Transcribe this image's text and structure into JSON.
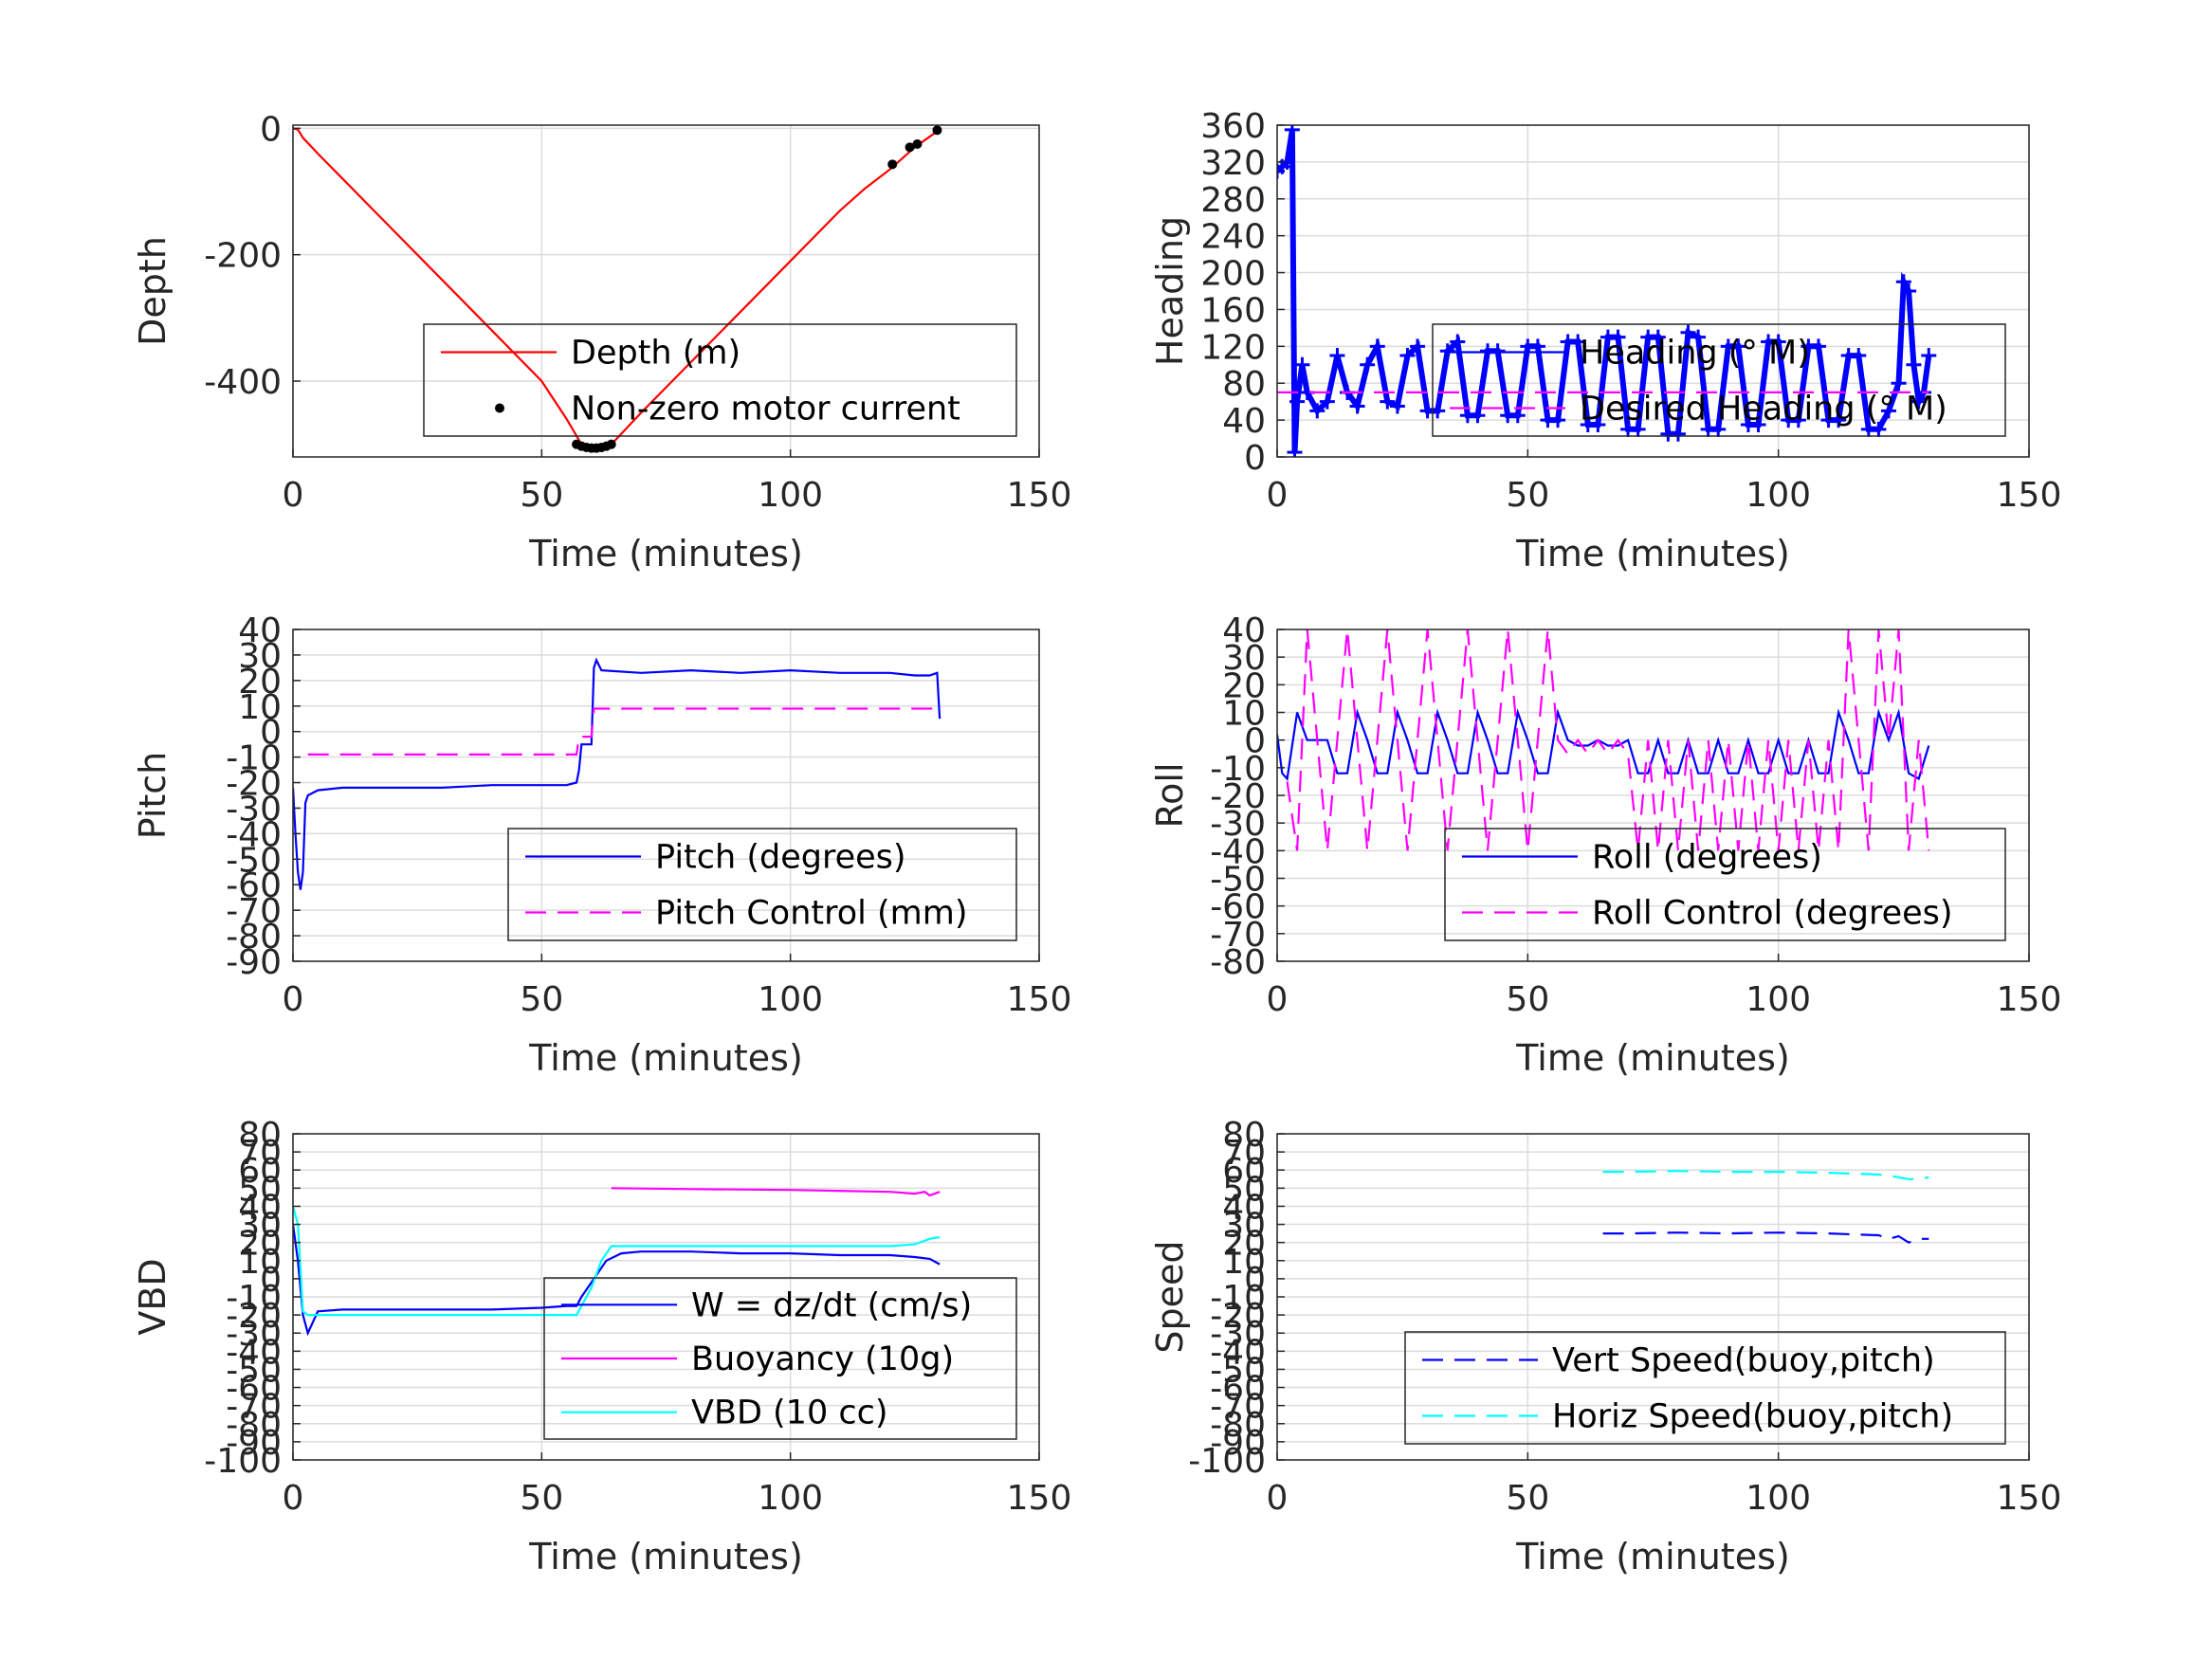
{
  "chart_data": [
    {
      "id": "depth",
      "type": "line",
      "xlabel": "Time (minutes)",
      "ylabel": "Depth",
      "xlim": [
        0,
        150
      ],
      "ylim": [
        -520,
        5
      ],
      "xticks": [
        0,
        50,
        100,
        150
      ],
      "yticks": [
        0,
        -200,
        -400
      ],
      "grid": true,
      "legend": {
        "placement": "lower-right",
        "entries": [
          "Depth (m)",
          "Non-zero motor current"
        ]
      },
      "series": [
        {
          "name": "Depth (m)",
          "style": "solid",
          "color": "#ff0000",
          "x": [
            0,
            1,
            2,
            5,
            10,
            20,
            30,
            40,
            50,
            55,
            58,
            60,
            62,
            64,
            70,
            80,
            90,
            100,
            110,
            115,
            120,
            125,
            130
          ],
          "y": [
            0,
            -2,
            -15,
            -40,
            -80,
            -160,
            -240,
            -320,
            -400,
            -460,
            -500,
            -505,
            -503,
            -500,
            -450,
            -370,
            -290,
            -210,
            -130,
            -95,
            -65,
            -30,
            -2
          ]
        },
        {
          "name": "Non-zero motor current",
          "style": "dots",
          "color": "#000000",
          "x": [
            57,
            58,
            59,
            60,
            61,
            62,
            63,
            64,
            120.5,
            124,
            125.5,
            129.5
          ],
          "y": [
            -500,
            -503,
            -505,
            -506,
            -506,
            -505,
            -503,
            -500,
            -57,
            -30,
            -25,
            -3
          ]
        }
      ]
    },
    {
      "id": "heading",
      "type": "line",
      "xlabel": "Time (minutes)",
      "ylabel": "Heading",
      "xlim": [
        0,
        150
      ],
      "ylim": [
        0,
        360
      ],
      "xticks": [
        0,
        50,
        100,
        150
      ],
      "yticks": [
        0,
        40,
        80,
        120,
        160,
        200,
        240,
        280,
        320,
        360
      ],
      "grid": true,
      "legend": {
        "placement": "lower-right",
        "entries": [
          "Heading (° M)",
          "Desired Heading (° M)"
        ]
      },
      "series": [
        {
          "name": "Heading (° M)",
          "style": "plus-markers",
          "color": "#0000ff",
          "x": [
            0,
            1,
            2,
            3,
            3.5,
            4,
            5,
            6,
            8,
            10,
            12,
            14,
            16,
            18,
            20,
            22,
            24,
            26,
            28,
            30,
            32,
            34,
            36,
            38,
            40,
            42,
            44,
            46,
            48,
            50,
            52,
            54,
            56,
            58,
            60,
            62,
            64,
            66,
            68,
            70,
            72,
            74,
            76,
            78,
            80,
            82,
            84,
            86,
            88,
            90,
            92,
            94,
            96,
            98,
            100,
            102,
            104,
            106,
            108,
            110,
            112,
            114,
            116,
            118,
            120,
            122,
            124,
            125,
            126,
            127,
            128,
            129,
            130
          ],
          "y": [
            310,
            315,
            320,
            355,
            5,
            60,
            100,
            70,
            50,
            60,
            110,
            70,
            55,
            100,
            120,
            60,
            55,
            110,
            120,
            50,
            50,
            115,
            125,
            45,
            45,
            115,
            115,
            45,
            45,
            120,
            120,
            40,
            40,
            125,
            125,
            35,
            35,
            130,
            130,
            30,
            30,
            130,
            130,
            25,
            25,
            135,
            130,
            30,
            30,
            120,
            120,
            35,
            35,
            125,
            125,
            40,
            40,
            120,
            120,
            40,
            40,
            110,
            110,
            30,
            30,
            50,
            80,
            190,
            180,
            100,
            60,
            70,
            110
          ]
        },
        {
          "name": "Desired Heading (° M)",
          "style": "dashed",
          "color": "#ff00ff",
          "x": [
            0,
            130
          ],
          "y": [
            70,
            70
          ]
        }
      ]
    },
    {
      "id": "pitch",
      "type": "line",
      "xlabel": "Time (minutes)",
      "ylabel": "Pitch",
      "xlim": [
        0,
        150
      ],
      "ylim": [
        -90,
        40
      ],
      "xticks": [
        0,
        50,
        100,
        150
      ],
      "yticks": [
        40,
        30,
        20,
        10,
        0,
        -10,
        -20,
        -30,
        -40,
        -50,
        -60,
        -70,
        -80,
        -90
      ],
      "grid": true,
      "legend": {
        "placement": "lower-right",
        "entries": [
          "Pitch (degrees)",
          "Pitch Control (mm)"
        ]
      },
      "series": [
        {
          "name": "Pitch (degrees)",
          "style": "solid",
          "color": "#0000ff",
          "x": [
            0,
            0.5,
            1,
            1.5,
            2,
            2.5,
            3,
            5,
            10,
            20,
            30,
            40,
            50,
            55,
            57,
            57.5,
            58,
            60,
            60.5,
            61,
            62,
            70,
            80,
            90,
            100,
            110,
            120,
            125,
            128,
            129.5,
            130
          ],
          "y": [
            -22,
            -40,
            -55,
            -62,
            -55,
            -28,
            -25,
            -23,
            -22,
            -22,
            -22,
            -21,
            -21,
            -21,
            -20,
            -15,
            -5,
            -5,
            25,
            28,
            24,
            23,
            24,
            23,
            24,
            23,
            23,
            22,
            22,
            23,
            5
          ]
        },
        {
          "name": "Pitch Control (mm)",
          "style": "dashed",
          "color": "#ff00ff",
          "x": [
            3,
            20,
            40,
            57,
            57.5,
            60,
            60.5,
            130
          ],
          "y": [
            -9,
            -9,
            -9,
            -9,
            -2,
            -2,
            9,
            9
          ]
        }
      ]
    },
    {
      "id": "roll",
      "type": "line",
      "xlabel": "Time (minutes)",
      "ylabel": "Roll",
      "xlim": [
        0,
        150
      ],
      "ylim": [
        -80,
        40
      ],
      "xticks": [
        0,
        50,
        100,
        150
      ],
      "yticks": [
        40,
        30,
        20,
        10,
        0,
        -10,
        -20,
        -30,
        -40,
        -50,
        -60,
        -70,
        -80
      ],
      "grid": true,
      "legend": {
        "placement": "lower-right",
        "entries": [
          "Roll (degrees)",
          "Roll Control (degrees)"
        ]
      },
      "series": [
        {
          "name": "Roll (degrees)",
          "style": "solid",
          "color": "#0000ff",
          "x": [
            0,
            1,
            2,
            4,
            6,
            8,
            10,
            12,
            14,
            16,
            18,
            20,
            22,
            24,
            26,
            28,
            30,
            32,
            34,
            36,
            38,
            40,
            42,
            44,
            46,
            48,
            50,
            52,
            54,
            56,
            58,
            60,
            62,
            64,
            66,
            68,
            70,
            72,
            74,
            76,
            78,
            80,
            82,
            84,
            86,
            88,
            90,
            92,
            94,
            96,
            98,
            100,
            102,
            104,
            106,
            108,
            110,
            112,
            114,
            116,
            118,
            120,
            122,
            124,
            126,
            128,
            130
          ],
          "y": [
            2,
            -12,
            -14,
            10,
            0,
            0,
            0,
            -12,
            -12,
            10,
            0,
            -12,
            -12,
            10,
            0,
            -12,
            -12,
            10,
            0,
            -12,
            -12,
            10,
            0,
            -12,
            -12,
            10,
            0,
            -12,
            -12,
            10,
            0,
            -2,
            -2,
            0,
            -2,
            -2,
            0,
            -12,
            -12,
            0,
            -12,
            -12,
            0,
            -12,
            -12,
            0,
            -12,
            -12,
            0,
            -12,
            -12,
            0,
            -12,
            -12,
            0,
            -12,
            -12,
            10,
            0,
            -12,
            -12,
            10,
            0,
            10,
            -12,
            -14,
            -2
          ]
        },
        {
          "name": "Roll Control (degrees)",
          "style": "dashed",
          "color": "#ff00ff",
          "x": [
            2,
            4,
            6,
            8,
            10,
            12,
            14,
            16,
            18,
            20,
            22,
            24,
            26,
            28,
            30,
            32,
            34,
            36,
            38,
            40,
            42,
            44,
            46,
            48,
            50,
            52,
            54,
            56,
            58,
            60,
            62,
            64,
            66,
            68,
            70,
            72,
            74,
            76,
            78,
            80,
            82,
            84,
            86,
            88,
            90,
            92,
            94,
            96,
            98,
            100,
            102,
            104,
            106,
            108,
            110,
            112,
            114,
            116,
            118,
            120,
            122,
            124,
            126,
            128,
            130
          ],
          "y": [
            -15,
            -40,
            40,
            0,
            -40,
            0,
            40,
            0,
            -40,
            0,
            40,
            0,
            -40,
            0,
            40,
            0,
            -40,
            0,
            40,
            0,
            -40,
            0,
            40,
            0,
            -40,
            0,
            40,
            0,
            -5,
            0,
            -5,
            0,
            -5,
            0,
            -5,
            -40,
            0,
            -40,
            0,
            -40,
            0,
            -40,
            0,
            -40,
            0,
            -40,
            0,
            -40,
            0,
            -40,
            0,
            -40,
            0,
            -40,
            0,
            -40,
            40,
            0,
            -40,
            40,
            0,
            40,
            -40,
            0,
            -40
          ]
        }
      ]
    },
    {
      "id": "vbd",
      "type": "line",
      "xlabel": "Time (minutes)",
      "ylabel": "VBD",
      "xlim": [
        0,
        150
      ],
      "ylim": [
        -100,
        80
      ],
      "xticks": [
        0,
        50,
        100,
        150
      ],
      "yticks": [
        80,
        70,
        60,
        50,
        40,
        30,
        20,
        10,
        0,
        -10,
        -20,
        -30,
        -40,
        -50,
        -60,
        -70,
        -80,
        -90,
        -100
      ],
      "grid": true,
      "legend": {
        "placement": "lower-right",
        "entries": [
          "W = dz/dt (cm/s)",
          "Buoyancy (10g)",
          "VBD (10 cc)"
        ]
      },
      "series": [
        {
          "name": "W = dz/dt (cm/s)",
          "style": "solid",
          "color": "#0000ff",
          "x": [
            0,
            1,
            2,
            3,
            5,
            10,
            20,
            30,
            40,
            50,
            55,
            57,
            58,
            60,
            63,
            66,
            70,
            80,
            90,
            100,
            110,
            120,
            125,
            128,
            130
          ],
          "y": [
            30,
            10,
            -20,
            -30,
            -18,
            -17,
            -17,
            -17,
            -17,
            -16,
            -15,
            -15,
            -10,
            -2,
            10,
            14,
            15,
            15,
            14,
            14,
            13,
            13,
            12,
            11,
            8
          ]
        },
        {
          "name": "Buoyancy (10g)",
          "style": "solid",
          "color": "#ff00ff",
          "x": [
            64,
            80,
            100,
            120,
            125,
            127,
            128,
            130
          ],
          "y": [
            50,
            49.5,
            49,
            48,
            47,
            48,
            46,
            48
          ]
        },
        {
          "name": "VBD (10 cc)",
          "style": "solid",
          "color": "#00ffff",
          "x": [
            0,
            1,
            2,
            3,
            5,
            10,
            20,
            30,
            40,
            50,
            57,
            58,
            60,
            62,
            64,
            70,
            80,
            90,
            100,
            110,
            120,
            125,
            128,
            130
          ],
          "y": [
            40,
            30,
            -18,
            -20,
            -20,
            -20,
            -20,
            -20,
            -20,
            -20,
            -20,
            -15,
            -5,
            10,
            18,
            18,
            18,
            18,
            18,
            18,
            18,
            19,
            22,
            23
          ]
        }
      ]
    },
    {
      "id": "speed",
      "type": "line",
      "xlabel": "Time (minutes)",
      "ylabel": "Speed",
      "xlim": [
        0,
        150
      ],
      "ylim": [
        -100,
        80
      ],
      "xticks": [
        0,
        50,
        100,
        150
      ],
      "yticks": [
        80,
        70,
        60,
        50,
        40,
        30,
        20,
        10,
        0,
        -10,
        -20,
        -30,
        -40,
        -50,
        -60,
        -70,
        -80,
        -90,
        -100
      ],
      "grid": true,
      "legend": {
        "placement": "lower-right",
        "entries": [
          "Vert Speed(buoy,pitch)",
          "Horiz Speed(buoy,pitch)"
        ]
      },
      "series": [
        {
          "name": "Vert Speed(buoy,pitch)",
          "style": "dashed",
          "color": "#0000ff",
          "x": [
            65,
            70,
            80,
            90,
            100,
            110,
            115,
            120,
            122,
            124,
            126,
            128,
            130
          ],
          "y": [
            25,
            25,
            25.5,
            25,
            25.5,
            25,
            24.5,
            24,
            22,
            23.5,
            20,
            22,
            22
          ]
        },
        {
          "name": "Horiz Speed(buoy,pitch)",
          "style": "dashed",
          "color": "#00ffff",
          "x": [
            65,
            70,
            80,
            90,
            100,
            110,
            115,
            120,
            122,
            124,
            126,
            128,
            130
          ],
          "y": [
            59,
            59,
            59.5,
            59,
            59,
            58.5,
            58,
            57.5,
            57,
            56,
            55,
            55,
            56
          ]
        }
      ]
    }
  ]
}
